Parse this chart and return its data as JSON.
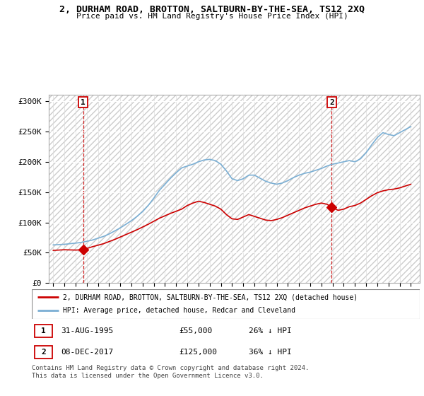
{
  "title": "2, DURHAM ROAD, BROTTON, SALTBURN-BY-THE-SEA, TS12 2XQ",
  "subtitle": "Price paid vs. HM Land Registry's House Price Index (HPI)",
  "ylim": [
    0,
    310000
  ],
  "yticks": [
    0,
    50000,
    100000,
    150000,
    200000,
    250000,
    300000
  ],
  "ytick_labels": [
    "£0",
    "£50K",
    "£100K",
    "£150K",
    "£200K",
    "£250K",
    "£300K"
  ],
  "xlim_start": 1992.6,
  "xlim_end": 2025.8,
  "sale1_year": 1995.67,
  "sale1_price": 55000,
  "sale1_label": "1",
  "sale2_year": 2017.92,
  "sale2_price": 125000,
  "sale2_label": "2",
  "legend_line1": "2, DURHAM ROAD, BROTTON, SALTBURN-BY-THE-SEA, TS12 2XQ (detached house)",
  "legend_line2": "HPI: Average price, detached house, Redcar and Cleveland",
  "footnote": "Contains HM Land Registry data © Crown copyright and database right 2024.\nThis data is licensed under the Open Government Licence v3.0.",
  "table_row1": [
    "1",
    "31-AUG-1995",
    "£55,000",
    "26% ↓ HPI"
  ],
  "table_row2": [
    "2",
    "08-DEC-2017",
    "£125,000",
    "36% ↓ HPI"
  ],
  "red_line_color": "#cc0000",
  "blue_line_color": "#7bafd4",
  "hpi_years": [
    1993.0,
    1993.5,
    1994.0,
    1994.5,
    1995.0,
    1995.5,
    1996.0,
    1996.5,
    1997.0,
    1997.5,
    1998.0,
    1998.5,
    1999.0,
    1999.5,
    2000.0,
    2000.5,
    2001.0,
    2001.5,
    2002.0,
    2002.5,
    2003.0,
    2003.5,
    2004.0,
    2004.5,
    2005.0,
    2005.5,
    2006.0,
    2006.5,
    2007.0,
    2007.5,
    2008.0,
    2008.5,
    2009.0,
    2009.5,
    2010.0,
    2010.5,
    2011.0,
    2011.5,
    2012.0,
    2012.5,
    2013.0,
    2013.5,
    2014.0,
    2014.5,
    2015.0,
    2015.5,
    2016.0,
    2016.5,
    2017.0,
    2017.5,
    2018.0,
    2018.5,
    2019.0,
    2019.5,
    2020.0,
    2020.5,
    2021.0,
    2021.5,
    2022.0,
    2022.5,
    2023.0,
    2023.5,
    2024.0,
    2024.5,
    2025.0
  ],
  "hpi_values": [
    63000,
    63500,
    64000,
    65000,
    66000,
    67000,
    69000,
    71000,
    74000,
    77000,
    81000,
    86000,
    91000,
    97000,
    103000,
    110000,
    118000,
    128000,
    140000,
    153000,
    163000,
    173000,
    182000,
    190000,
    193000,
    196000,
    200000,
    203000,
    204000,
    202000,
    196000,
    185000,
    172000,
    169000,
    172000,
    178000,
    178000,
    173000,
    168000,
    165000,
    163000,
    165000,
    169000,
    174000,
    178000,
    181000,
    183000,
    186000,
    189000,
    193000,
    196000,
    198000,
    200000,
    202000,
    200000,
    205000,
    215000,
    228000,
    240000,
    248000,
    245000,
    243000,
    248000,
    253000,
    258000
  ],
  "prop_years": [
    1993.0,
    1994.0,
    1995.0,
    1995.67,
    1996.5,
    1997.5,
    1998.5,
    1999.5,
    2000.5,
    2001.5,
    2002.5,
    2003.5,
    2004.5,
    2005.0,
    2005.5,
    2006.0,
    2006.5,
    2007.0,
    2007.5,
    2008.0,
    2008.5,
    2009.0,
    2009.5,
    2010.0,
    2010.5,
    2011.0,
    2011.5,
    2012.0,
    2012.5,
    2013.0,
    2013.5,
    2014.0,
    2014.5,
    2015.0,
    2015.5,
    2016.0,
    2016.5,
    2017.0,
    2017.5,
    2017.92,
    2018.5,
    2019.0,
    2019.5,
    2020.0,
    2020.5,
    2021.0,
    2021.5,
    2022.0,
    2022.5,
    2023.0,
    2023.5,
    2024.0,
    2024.5,
    2025.0
  ],
  "prop_values": [
    54000,
    55000,
    54500,
    55000,
    60000,
    65000,
    72000,
    80000,
    88000,
    97000,
    107000,
    115000,
    122000,
    128000,
    132000,
    135000,
    133000,
    130000,
    127000,
    122000,
    113000,
    106000,
    105000,
    109000,
    113000,
    110000,
    107000,
    104000,
    103000,
    105000,
    108000,
    112000,
    116000,
    120000,
    124000,
    127000,
    130000,
    132000,
    130000,
    125000,
    120000,
    122000,
    126000,
    128000,
    132000,
    138000,
    144000,
    149000,
    152000,
    154000,
    155000,
    157000,
    160000,
    163000
  ]
}
